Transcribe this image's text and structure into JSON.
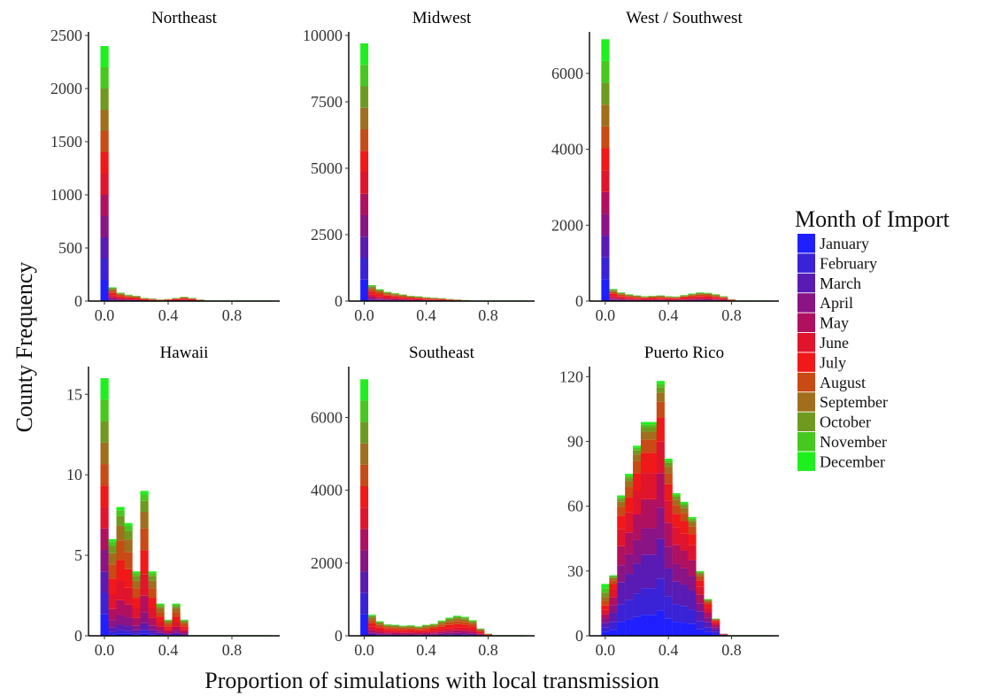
{
  "chart_data": {
    "type": "bar",
    "stacked": true,
    "x_axis_title": "Proportion of simulations with local transmission",
    "y_axis_title": "County Frequency",
    "legend": {
      "title": "Month of Import",
      "placement": "right",
      "entries": [
        {
          "name": "January",
          "color": "#1f1fff"
        },
        {
          "name": "February",
          "color": "#3a22d6"
        },
        {
          "name": "March",
          "color": "#5a1ab4"
        },
        {
          "name": "April",
          "color": "#8a1485"
        },
        {
          "name": "May",
          "color": "#b01060"
        },
        {
          "name": "June",
          "color": "#e0142c"
        },
        {
          "name": "July",
          "color": "#f01818"
        },
        {
          "name": "August",
          "color": "#c84a14"
        },
        {
          "name": "September",
          "color": "#a06e1c"
        },
        {
          "name": "October",
          "color": "#6e9a20"
        },
        {
          "name": "November",
          "color": "#46c81e"
        },
        {
          "name": "December",
          "color": "#1ef01e"
        }
      ]
    },
    "x_ticks": [
      "0.0",
      "0.4",
      "0.8"
    ],
    "bin_width": 0.05,
    "panels": [
      {
        "title": "Northeast",
        "ylim": [
          0,
          2500
        ],
        "y_ticks": [
          0,
          500,
          1000,
          1500,
          2000,
          2500
        ],
        "bin_starts": [
          0.0,
          0.05,
          0.1,
          0.15,
          0.2,
          0.25,
          0.3,
          0.35,
          0.4,
          0.45,
          0.5,
          0.55,
          0.6,
          0.65
        ],
        "totals": [
          2400,
          130,
          80,
          60,
          50,
          30,
          25,
          15,
          20,
          30,
          40,
          30,
          15,
          5
        ]
      },
      {
        "title": "Midwest",
        "ylim": [
          0,
          10000
        ],
        "y_ticks": [
          0,
          2500,
          5000,
          7500,
          10000
        ],
        "bin_starts": [
          0.0,
          0.05,
          0.1,
          0.15,
          0.2,
          0.25,
          0.3,
          0.35,
          0.4,
          0.45,
          0.5,
          0.55,
          0.6,
          0.65,
          0.7
        ],
        "totals": [
          9700,
          600,
          450,
          350,
          300,
          250,
          200,
          180,
          150,
          130,
          110,
          80,
          60,
          40,
          20
        ]
      },
      {
        "title": "West / Southwest",
        "ylim": [
          0,
          7000
        ],
        "y_ticks": [
          0,
          2000,
          4000,
          6000
        ],
        "bin_starts": [
          0.0,
          0.05,
          0.1,
          0.15,
          0.2,
          0.25,
          0.3,
          0.35,
          0.4,
          0.45,
          0.5,
          0.55,
          0.6,
          0.65,
          0.7,
          0.75,
          0.8
        ],
        "totals": [
          6900,
          320,
          230,
          180,
          150,
          130,
          140,
          150,
          130,
          120,
          160,
          200,
          230,
          220,
          180,
          130,
          50
        ]
      },
      {
        "title": "Hawaii",
        "ylim": [
          0,
          16.5
        ],
        "y_ticks": [
          0,
          5,
          10,
          15
        ],
        "bin_starts": [
          0.0,
          0.05,
          0.1,
          0.15,
          0.2,
          0.25,
          0.3,
          0.35,
          0.4,
          0.45,
          0.5
        ],
        "totals": [
          16,
          6,
          8,
          7,
          4,
          9,
          4,
          2,
          1,
          2,
          1
        ]
      },
      {
        "title": "Southeast",
        "ylim": [
          0,
          7300
        ],
        "y_ticks": [
          0,
          2000,
          4000,
          6000
        ],
        "bin_starts": [
          0.0,
          0.05,
          0.1,
          0.15,
          0.2,
          0.25,
          0.3,
          0.35,
          0.4,
          0.45,
          0.5,
          0.55,
          0.6,
          0.65,
          0.7,
          0.75,
          0.8
        ],
        "totals": [
          7050,
          580,
          400,
          320,
          300,
          280,
          290,
          260,
          300,
          330,
          420,
          500,
          550,
          520,
          430,
          200,
          60
        ]
      },
      {
        "title": "Puerto Rico",
        "ylim": [
          0,
          123
        ],
        "y_ticks": [
          0,
          30,
          60,
          90,
          120
        ],
        "bin_starts": [
          0.0,
          0.05,
          0.1,
          0.15,
          0.2,
          0.25,
          0.3,
          0.35,
          0.4,
          0.45,
          0.5,
          0.55,
          0.6,
          0.65,
          0.7,
          0.75
        ],
        "totals": [
          24,
          28,
          65,
          75,
          88,
          99,
          99,
          118,
          82,
          66,
          62,
          55,
          30,
          17,
          8,
          1
        ]
      }
    ]
  }
}
